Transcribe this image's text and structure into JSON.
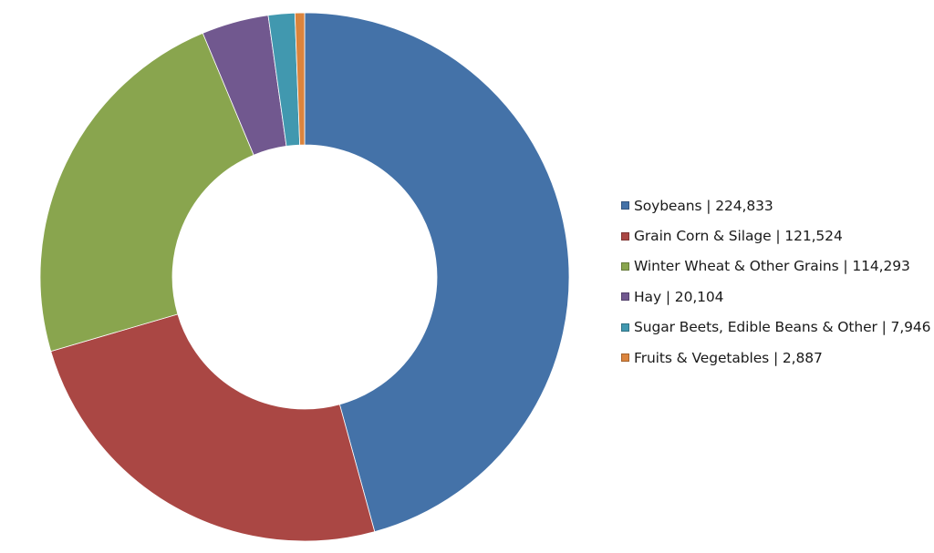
{
  "chart_data": {
    "type": "pie",
    "subtype": "donut",
    "title": "",
    "categories": [
      "Soybeans",
      "Grain Corn & Silage",
      "Winter Wheat & Other Grains",
      "Hay",
      "Sugar Beets, Edible Beans & Other",
      "Fruits & Vegetables"
    ],
    "values": [
      224833,
      121524,
      114293,
      20104,
      7946,
      2887
    ],
    "colors": [
      "#4472a8",
      "#aa4744",
      "#89a54e",
      "#71588f",
      "#4198af",
      "#db843d"
    ],
    "legend_position": "right",
    "start_angle_deg": 0,
    "direction": "clockwise",
    "hole_ratio": 0.5
  },
  "legend": {
    "items": [
      {
        "label": "Soybeans | 224,833",
        "color": "#4472a8"
      },
      {
        "label": "Grain Corn & Silage | 121,524",
        "color": "#aa4744"
      },
      {
        "label": "Winter Wheat & Other Grains | 114,293",
        "color": "#89a54e"
      },
      {
        "label": "Hay | 20,104",
        "color": "#71588f"
      },
      {
        "label": "Sugar Beets, Edible Beans & Other | 7,946",
        "color": "#4198af"
      },
      {
        "label": "Fruits & Vegetables | 2,887",
        "color": "#db843d"
      }
    ]
  }
}
